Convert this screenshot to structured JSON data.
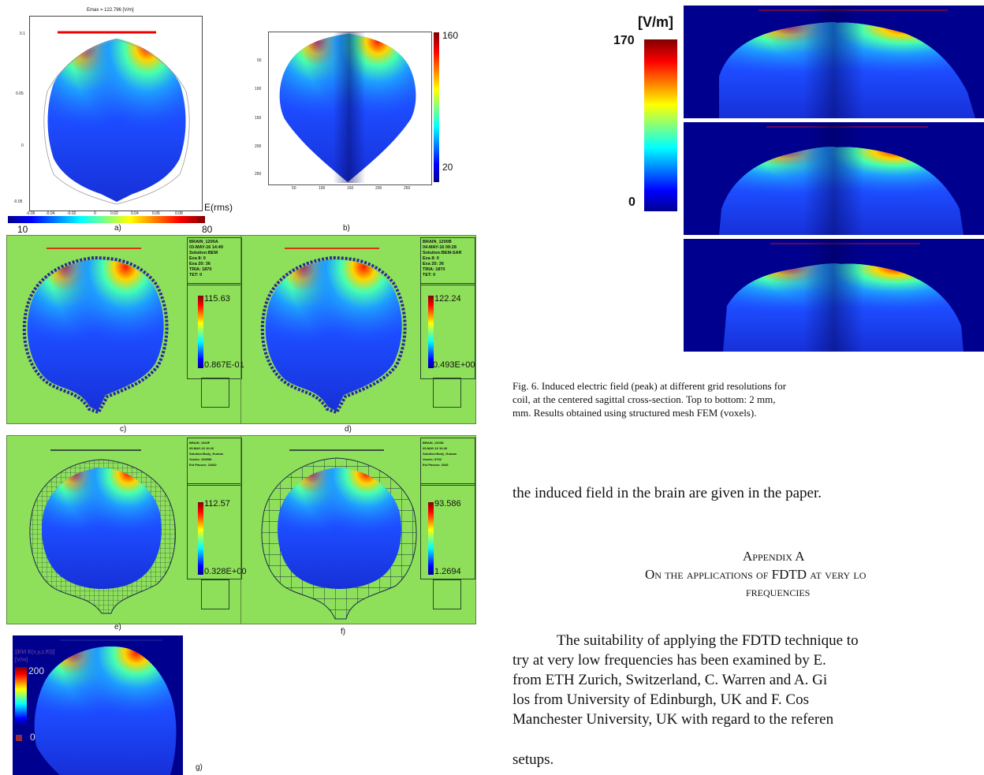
{
  "fig_a": {
    "title": "Emax = 122.796 [V/m]",
    "yticks": [
      "0.1",
      "0.05",
      "0",
      "-0.05"
    ],
    "xticks": [
      "-0.06",
      "-0.04",
      "-0.02",
      "0",
      "0.02",
      "0.04",
      "0.06",
      "0.08"
    ],
    "colorbar_unit": "E(rms)",
    "cb_min": "10",
    "cb_max": "80",
    "label": "a)"
  },
  "fig_b": {
    "yticks": [
      "50",
      "100",
      "150",
      "200",
      "250"
    ],
    "xticks": [
      "50",
      "100",
      "150",
      "200",
      "250"
    ],
    "cb_max": "160",
    "cb_min": "20",
    "label": "b)"
  },
  "fig_c": {
    "info": [
      "BRAIN_1200A",
      "03-MAY-16 14:49",
      "Solution:BEM",
      "Exa 8:    0",
      "Exa 20:  36",
      "TRIA:   1870",
      "TET:    0"
    ],
    "cb_max": "115.63",
    "cb_min": "0.867E-01",
    "label": "c)"
  },
  "fig_d": {
    "info": [
      "BRAIN_1200B",
      "04-MAY-16 09:28",
      "Solution:BEM-SAR",
      "Exa 8:    0",
      "Exa 20:  36",
      "TRIA:   1870",
      "TET:    0"
    ],
    "cb_max": "122.24",
    "cb_min": "0.493E+00",
    "label": "d)"
  },
  "fig_e": {
    "info": [
      "BRAIN_1063F",
      "05-MAY-16 10:20",
      "Solution:Body_Human",
      "Voxels:   106998",
      "Ext Passes: 23482"
    ],
    "cb_max": "112.57",
    "cb_min": "0.328E+00",
    "label": "e)"
  },
  "fig_f": {
    "info": [
      "BRAIN_1200D",
      "05-MAY-16 10:40",
      "Solution:Body_Human",
      "Voxels:   9702",
      "Ext Passes: 3345"
    ],
    "cb_max": "93.586",
    "cb_min": "1.2694",
    "label": "f)"
  },
  "fig_g": {
    "legend_title": "||EM E(x,y,z,f0)||",
    "legend_unit": "[V/m]",
    "cb_max": "200",
    "cb_min": "0",
    "label": "g)"
  },
  "fig6": {
    "unit": "[V/m]",
    "cb_max": "170",
    "cb_min": "0",
    "caption": "Fig. 6.  Induced electric field (peak) at different grid resolutions for",
    "caption2": "coil, at the centered sagittal cross-section. Top to bottom: 2 mm,",
    "caption3": "mm. Results obtained using structured mesh FEM (voxels)."
  },
  "text": {
    "line1": "the induced field in the brain are given in the paper.",
    "appendix_title": "Appendix A",
    "appendix_sub1": "On the applications of FDTD at very lo",
    "appendix_sub2": "frequencies",
    "para1": "The suitability of applying the FDTD technique to",
    "para2": "try at very low frequencies has been examined by E.",
    "para3": "from ETH Zurich, Switzerland, C. Warren and A. Gi",
    "para4": "los from University of Edinburgh, UK and F. Cos",
    "para5": "Manchester University, UK with regard to the referen",
    "para6": "setups."
  }
}
